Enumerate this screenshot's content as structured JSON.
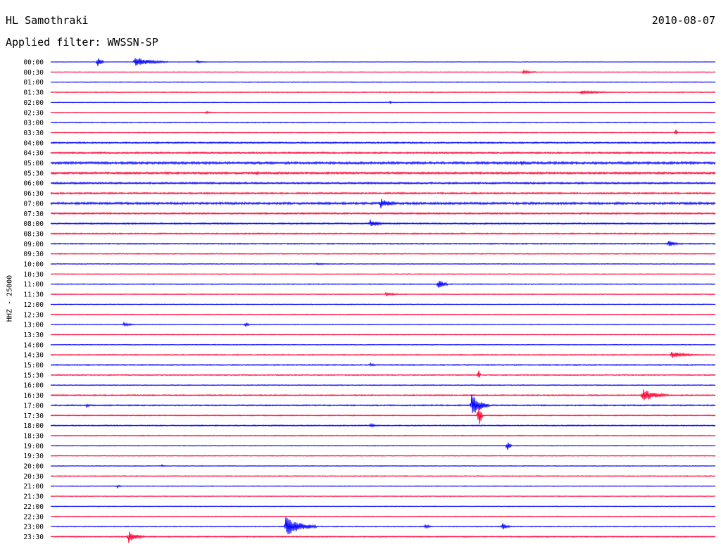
{
  "header": {
    "station": "HL Samothraki",
    "date": "2010-08-07",
    "filter": "Applied filter: WWSSN-SP"
  },
  "colors": {
    "even_row": "#0000ff",
    "odd_row": "#ff0033"
  },
  "chart_data": {
    "type": "line",
    "title": "HL Samothraki",
    "ylabel": "HHZ - 25000",
    "row_labels": [
      "00:00",
      "00:30",
      "01:00",
      "01:30",
      "02:00",
      "02:30",
      "03:00",
      "03:30",
      "04:00",
      "04:30",
      "05:00",
      "05:30",
      "06:00",
      "06:30",
      "07:00",
      "07:30",
      "08:00",
      "08:30",
      "09:00",
      "09:30",
      "10:00",
      "10:30",
      "11:00",
      "11:30",
      "12:00",
      "12:30",
      "13:00",
      "13:30",
      "14:00",
      "14:30",
      "15:00",
      "15:30",
      "16:00",
      "16:30",
      "17:00",
      "17:30",
      "18:00",
      "18:30",
      "19:00",
      "19:30",
      "20:00",
      "20:30",
      "21:00",
      "21:30",
      "22:00",
      "22:30",
      "23:00",
      "23:30"
    ],
    "x_range_minutes": [
      0,
      30
    ],
    "noise_level": [
      0.3,
      0.4,
      0.5,
      0.5,
      0.4,
      0.4,
      0.6,
      0.6,
      1.0,
      1.2,
      1.6,
      1.4,
      1.2,
      1.1,
      1.5,
      1.1,
      1.0,
      0.9,
      0.8,
      0.6,
      0.5,
      0.5,
      0.6,
      0.5,
      0.5,
      0.5,
      0.5,
      0.5,
      0.5,
      0.7,
      0.8,
      0.7,
      0.6,
      0.9,
      0.9,
      0.7,
      0.8,
      0.6,
      0.5,
      0.5,
      0.5,
      0.6,
      0.5,
      0.5,
      0.5,
      0.5,
      0.6,
      0.8
    ],
    "events": [
      {
        "row": 0,
        "minute": 2.1,
        "amplitude": 9,
        "duration_min": 0.3
      },
      {
        "row": 0,
        "minute": 3.8,
        "amplitude": 7,
        "duration_min": 1.5
      },
      {
        "row": 0,
        "minute": 6.6,
        "amplitude": 2,
        "duration_min": 0.5
      },
      {
        "row": 1,
        "minute": 21.3,
        "amplitude": 3,
        "duration_min": 0.8
      },
      {
        "row": 3,
        "minute": 23.9,
        "amplitude": 3,
        "duration_min": 1.8
      },
      {
        "row": 4,
        "minute": 15.3,
        "amplitude": 3,
        "duration_min": 0.1
      },
      {
        "row": 5,
        "minute": 7.0,
        "amplitude": 2,
        "duration_min": 0.4
      },
      {
        "row": 7,
        "minute": 28.2,
        "amplitude": 6,
        "duration_min": 0.1
      },
      {
        "row": 10,
        "minute": 21.2,
        "amplitude": 4,
        "duration_min": 0.4
      },
      {
        "row": 11,
        "minute": 9.3,
        "amplitude": 3,
        "duration_min": 0.2
      },
      {
        "row": 14,
        "minute": 14.9,
        "amplitude": 7,
        "duration_min": 0.9
      },
      {
        "row": 16,
        "minute": 14.4,
        "amplitude": 6,
        "duration_min": 0.8
      },
      {
        "row": 18,
        "minute": 27.9,
        "amplitude": 5,
        "duration_min": 0.5
      },
      {
        "row": 20,
        "minute": 12.0,
        "amplitude": 2,
        "duration_min": 0.6
      },
      {
        "row": 22,
        "minute": 17.5,
        "amplitude": 10,
        "duration_min": 0.4
      },
      {
        "row": 23,
        "minute": 15.1,
        "amplitude": 3,
        "duration_min": 0.9
      },
      {
        "row": 26,
        "minute": 3.3,
        "amplitude": 3,
        "duration_min": 0.6
      },
      {
        "row": 26,
        "minute": 8.8,
        "amplitude": 4,
        "duration_min": 0.2
      },
      {
        "row": 29,
        "minute": 28.0,
        "amplitude": 5,
        "duration_min": 1.4
      },
      {
        "row": 30,
        "minute": 14.4,
        "amplitude": 3,
        "duration_min": 0.4
      },
      {
        "row": 31,
        "minute": 19.3,
        "amplitude": 9,
        "duration_min": 0.1
      },
      {
        "row": 33,
        "minute": 26.7,
        "amplitude": 10,
        "duration_min": 1.2
      },
      {
        "row": 34,
        "minute": 19.0,
        "amplitude": 16,
        "duration_min": 0.8
      },
      {
        "row": 34,
        "minute": 1.6,
        "amplitude": 3,
        "duration_min": 0.3
      },
      {
        "row": 35,
        "minute": 19.3,
        "amplitude": 22,
        "duration_min": 0.2
      },
      {
        "row": 36,
        "minute": 14.4,
        "amplitude": 3,
        "duration_min": 0.5
      },
      {
        "row": 38,
        "minute": 20.6,
        "amplitude": 9,
        "duration_min": 0.2
      },
      {
        "row": 40,
        "minute": 5.0,
        "amplitude": 2,
        "duration_min": 0.2
      },
      {
        "row": 42,
        "minute": 3.0,
        "amplitude": 3,
        "duration_min": 0.2
      },
      {
        "row": 46,
        "minute": 10.6,
        "amplitude": 14,
        "duration_min": 1.4
      },
      {
        "row": 46,
        "minute": 16.9,
        "amplitude": 4,
        "duration_min": 0.3
      },
      {
        "row": 46,
        "minute": 20.4,
        "amplitude": 5,
        "duration_min": 0.4
      },
      {
        "row": 47,
        "minute": 3.5,
        "amplitude": 10,
        "duration_min": 0.7
      }
    ]
  }
}
